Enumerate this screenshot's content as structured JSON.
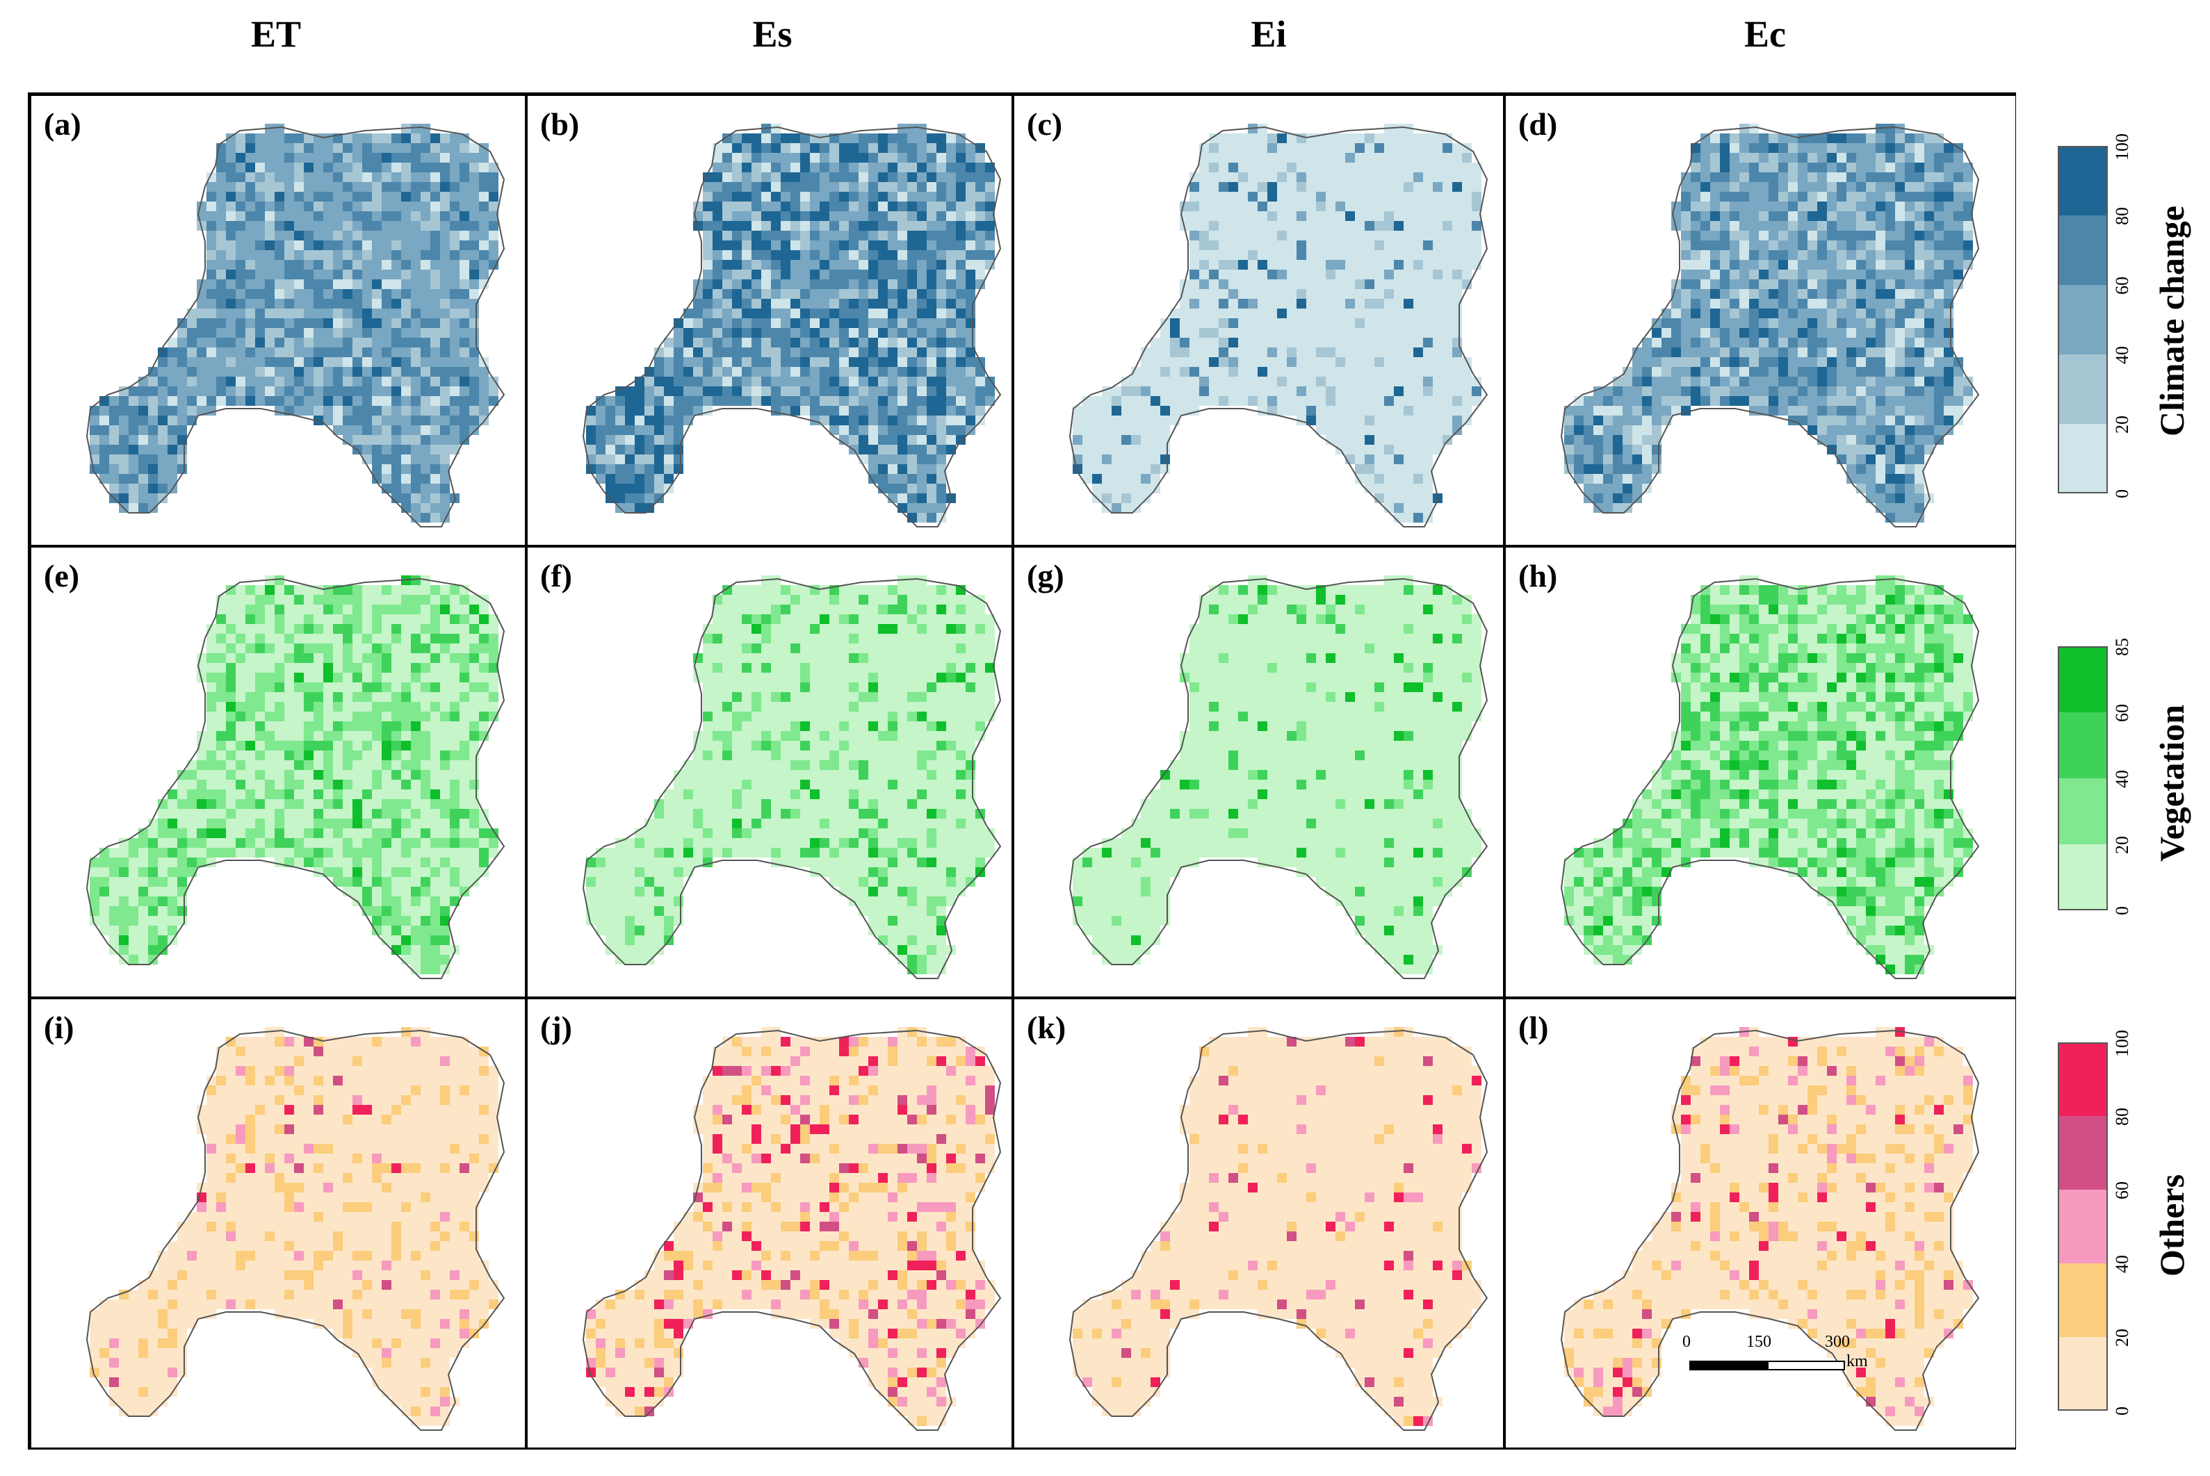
{
  "columns": [
    "ET",
    "Es",
    "Ei",
    "Ec"
  ],
  "panels": [
    {
      "label": "(a)",
      "row": 0,
      "col": 0
    },
    {
      "label": "(b)",
      "row": 0,
      "col": 1
    },
    {
      "label": "(c)",
      "row": 0,
      "col": 2
    },
    {
      "label": "(d)",
      "row": 0,
      "col": 3
    },
    {
      "label": "(e)",
      "row": 1,
      "col": 0
    },
    {
      "label": "(f)",
      "row": 1,
      "col": 1
    },
    {
      "label": "(g)",
      "row": 1,
      "col": 2
    },
    {
      "label": "(h)",
      "row": 1,
      "col": 3
    },
    {
      "label": "(i)",
      "row": 2,
      "col": 0
    },
    {
      "label": "(j)",
      "row": 2,
      "col": 1
    },
    {
      "label": "(k)",
      "row": 2,
      "col": 2
    },
    {
      "label": "(l)",
      "row": 2,
      "col": 3
    }
  ],
  "legends": [
    {
      "title": "Climate change",
      "ticks": [
        "0",
        "20",
        "40",
        "60",
        "80",
        "100"
      ],
      "colors": [
        "#cfe5ea",
        "#a7c6d4",
        "#7aa7c1",
        "#4c86ab",
        "#1e6694"
      ]
    },
    {
      "title": "Vegetation",
      "ticks": [
        "0",
        "20",
        "40",
        "60",
        "85"
      ],
      "colors": [
        "#c5f5c9",
        "#80e88f",
        "#3fd25a",
        "#0fbf2b"
      ]
    },
    {
      "title": "Others",
      "ticks": [
        "0",
        "20",
        "40",
        "60",
        "80",
        "100"
      ],
      "colors": [
        "#fde6c8",
        "#fbcd7c",
        "#f79abf",
        "#d14f84",
        "#f0215a"
      ]
    }
  ],
  "scalebar": {
    "ticks": [
      "0",
      "150",
      "300"
    ],
    "unit": "km"
  }
}
